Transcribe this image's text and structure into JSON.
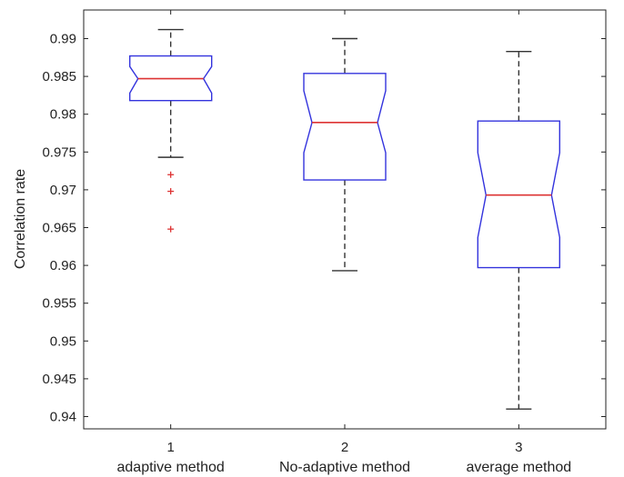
{
  "chart_data": {
    "type": "boxplot",
    "title": "",
    "ylabel": "Correlation rate",
    "ylim": [
      0.938,
      0.9945
    ],
    "yticks": [
      "0.94",
      "0.945",
      "0.95",
      "0.955",
      "0.96",
      "0.965",
      "0.97",
      "0.975",
      "0.98",
      "0.985",
      "0.99"
    ],
    "notched": true,
    "box_color": "#3333dd",
    "median_color": "#dd3333",
    "whisker_color": "#333333",
    "outlier_color": "#dd3333",
    "categories": [
      {
        "tick": "1",
        "label": "adaptive method"
      },
      {
        "tick": "2",
        "label": "No-adaptive method"
      },
      {
        "tick": "3",
        "label": "average method"
      }
    ],
    "boxes": [
      {
        "whisker_low": 0.9743,
        "q1": 0.9818,
        "notch_low": 0.9828,
        "median": 0.9847,
        "notch_high": 0.9863,
        "q3": 0.9877,
        "whisker_high": 0.9912,
        "outliers": [
          0.972,
          0.9698,
          0.9648
        ]
      },
      {
        "whisker_low": 0.9593,
        "q1": 0.9713,
        "notch_low": 0.9749,
        "median": 0.9789,
        "notch_high": 0.9831,
        "q3": 0.9854,
        "whisker_high": 0.99,
        "outliers": []
      },
      {
        "whisker_low": 0.941,
        "q1": 0.9597,
        "notch_low": 0.9637,
        "median": 0.9693,
        "notch_high": 0.9749,
        "q3": 0.9791,
        "whisker_high": 0.9883,
        "outliers": []
      }
    ]
  }
}
